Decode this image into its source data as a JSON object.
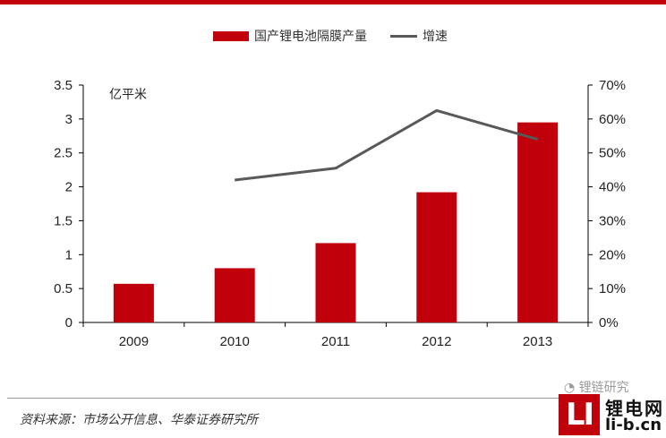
{
  "chart_data": {
    "type": "bar",
    "categories": [
      "2009",
      "2010",
      "2011",
      "2012",
      "2013"
    ],
    "series": [
      {
        "name": "国产锂电池隔膜产量",
        "type": "bar",
        "axis": "left",
        "values": [
          0.57,
          0.8,
          1.17,
          1.92,
          2.95
        ]
      },
      {
        "name": "增速",
        "type": "line",
        "axis": "right",
        "values": [
          null,
          0.42,
          0.455,
          0.625,
          0.54
        ]
      }
    ],
    "unit_label": "亿平米",
    "y_left": {
      "ticks": [
        "0",
        "0.5",
        "1",
        "1.5",
        "2",
        "2.5",
        "3",
        "3.5"
      ],
      "range": [
        0,
        3.5
      ]
    },
    "y_right": {
      "ticks": [
        "0%",
        "10%",
        "20%",
        "30%",
        "40%",
        "50%",
        "60%",
        "70%"
      ],
      "range": [
        0,
        0.7
      ]
    },
    "legend_position": "top",
    "grid": false,
    "colors": {
      "bar": "#c0000a",
      "line": "#595959"
    }
  },
  "source_note": "资料来源：市场公开信息、华泰证券研究所",
  "watermark": {
    "wechat_text": "锂链研究",
    "logo_mark": "LI",
    "site_name": "锂电网",
    "site_url": "li-b.cn"
  }
}
